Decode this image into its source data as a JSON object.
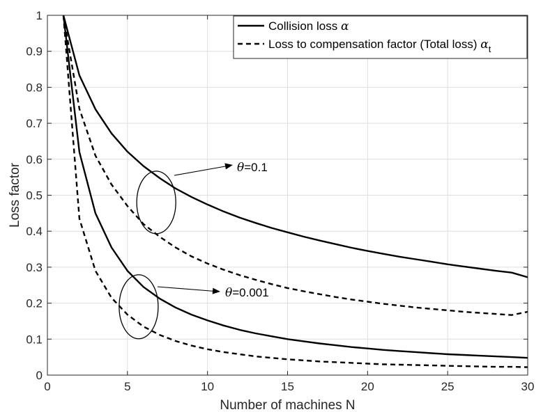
{
  "chart_data": {
    "type": "line",
    "title": "",
    "xlabel": "Number of machines N",
    "ylabel": "Loss factor",
    "xlim": [
      0,
      30
    ],
    "ylim": [
      0,
      1
    ],
    "xticks": [
      0,
      5,
      10,
      15,
      20,
      25,
      30
    ],
    "yticks": [
      0,
      0.1,
      0.2,
      0.3,
      0.4,
      0.5,
      0.6,
      0.7,
      0.8,
      0.9,
      1
    ],
    "grid": true,
    "legend_position": "top-right",
    "x": [
      1,
      2,
      3,
      4,
      5,
      6,
      7,
      8,
      9,
      10,
      11,
      12,
      13,
      14,
      15,
      16,
      17,
      18,
      19,
      20,
      21,
      22,
      23,
      24,
      25,
      26,
      27,
      28,
      29,
      30
    ],
    "series": [
      {
        "name": "Collision loss α",
        "legend_prefix": "Collision loss ",
        "legend_symbol": "α",
        "legend_sub": "",
        "style": "solid",
        "theta": "0.1",
        "values": [
          1,
          0.833,
          0.739,
          0.672,
          0.621,
          0.581,
          0.548,
          0.519,
          0.495,
          0.474,
          0.455,
          0.438,
          0.423,
          0.409,
          0.397,
          0.385,
          0.374,
          0.364,
          0.354,
          0.345,
          0.337,
          0.329,
          0.322,
          0.315,
          0.308,
          0.302,
          0.296,
          0.29,
          0.285,
          0.272
        ]
      },
      {
        "name": "Loss to compensation factor (Total loss) α_t",
        "legend_prefix": "Loss to compensation factor (Total loss) ",
        "legend_symbol": "α",
        "legend_sub": "t",
        "style": "dashed",
        "theta": "0.1",
        "values": [
          1,
          0.74,
          0.61,
          0.53,
          0.47,
          0.42,
          0.385,
          0.355,
          0.33,
          0.31,
          0.293,
          0.278,
          0.265,
          0.253,
          0.242,
          0.233,
          0.225,
          0.217,
          0.21,
          0.204,
          0.198,
          0.193,
          0.188,
          0.184,
          0.18,
          0.176,
          0.173,
          0.17,
          0.167,
          0.176
        ]
      },
      {
        "name": "Collision loss α",
        "style": "solid",
        "theta": "0.001",
        "values": [
          1,
          0.62,
          0.45,
          0.355,
          0.29,
          0.245,
          0.213,
          0.188,
          0.168,
          0.152,
          0.138,
          0.126,
          0.116,
          0.108,
          0.1,
          0.094,
          0.088,
          0.083,
          0.078,
          0.074,
          0.07,
          0.067,
          0.064,
          0.061,
          0.058,
          0.056,
          0.054,
          0.052,
          0.05,
          0.048
        ]
      },
      {
        "name": "Loss to compensation factor (Total loss) α_t",
        "style": "dashed",
        "theta": "0.001",
        "values": [
          1,
          0.435,
          0.29,
          0.215,
          0.168,
          0.135,
          0.112,
          0.095,
          0.082,
          0.072,
          0.064,
          0.058,
          0.052,
          0.048,
          0.044,
          0.041,
          0.038,
          0.036,
          0.034,
          0.032,
          0.03,
          0.029,
          0.028,
          0.027,
          0.026,
          0.025,
          0.024,
          0.023,
          0.023,
          0.022
        ]
      }
    ],
    "annotations": [
      {
        "symbol": "θ",
        "text": "=0.1",
        "applies_to": "upper pair of curves",
        "ellipse_center": [
          6.8,
          0.48
        ]
      },
      {
        "symbol": "θ",
        "text": "=0.001",
        "applies_to": "lower pair of curves",
        "ellipse_center": [
          5.7,
          0.19
        ]
      }
    ]
  }
}
